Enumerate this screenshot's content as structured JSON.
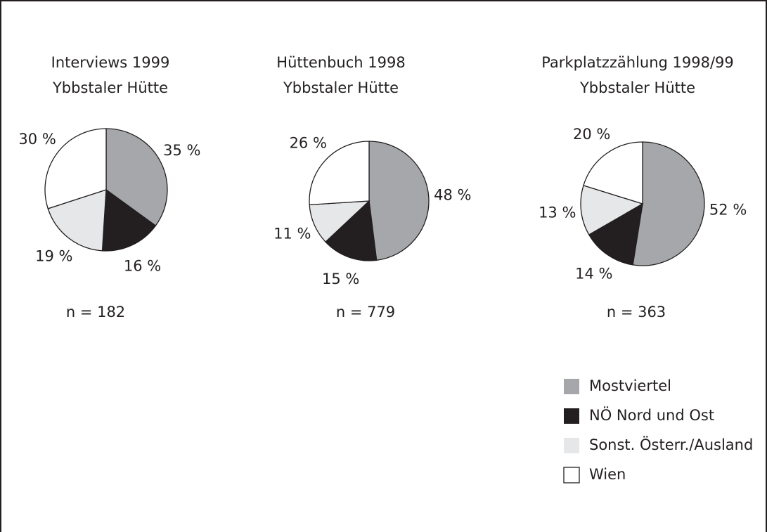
{
  "chart_data": [
    {
      "type": "pie",
      "title": "Interviews 1999",
      "subtitle": "Ybbstaler Hütte",
      "categories": [
        "Mostviertel",
        "NÖ Nord und Ost",
        "Sonst. Österr./Ausland",
        "Wien"
      ],
      "colors": [
        "#a6a7ab",
        "#231f20",
        "#e6e7e9",
        "#ffffff"
      ],
      "values": [
        35,
        16,
        19,
        30
      ],
      "value_labels": [
        "35 %",
        "16 %",
        "19 %",
        "30 %"
      ],
      "note": "n = 182"
    },
    {
      "type": "pie",
      "title": "Hüttenbuch 1998",
      "subtitle": "Ybbstaler Hütte",
      "categories": [
        "Mostviertel",
        "NÖ Nord und Ost",
        "Sonst. Österr./Ausland",
        "Wien"
      ],
      "colors": [
        "#a6a7ab",
        "#231f20",
        "#e6e7e9",
        "#ffffff"
      ],
      "values": [
        48,
        15,
        11,
        26
      ],
      "value_labels": [
        "48 %",
        "15 %",
        "11 %",
        "26 %"
      ],
      "note": "n = 779"
    },
    {
      "type": "pie",
      "title": "Parkplatzzählung 1998/99",
      "subtitle": "Ybbstaler Hütte",
      "categories": [
        "Mostviertel",
        "NÖ Nord und Ost",
        "Sonst. Österr./Ausland",
        "Wien"
      ],
      "colors": [
        "#a6a7ab",
        "#231f20",
        "#e6e7e9",
        "#ffffff"
      ],
      "values": [
        52,
        14,
        13,
        20
      ],
      "value_labels": [
        "52 %",
        "14 %",
        "13 %",
        "20 %"
      ],
      "note": "n = 363"
    }
  ]
}
